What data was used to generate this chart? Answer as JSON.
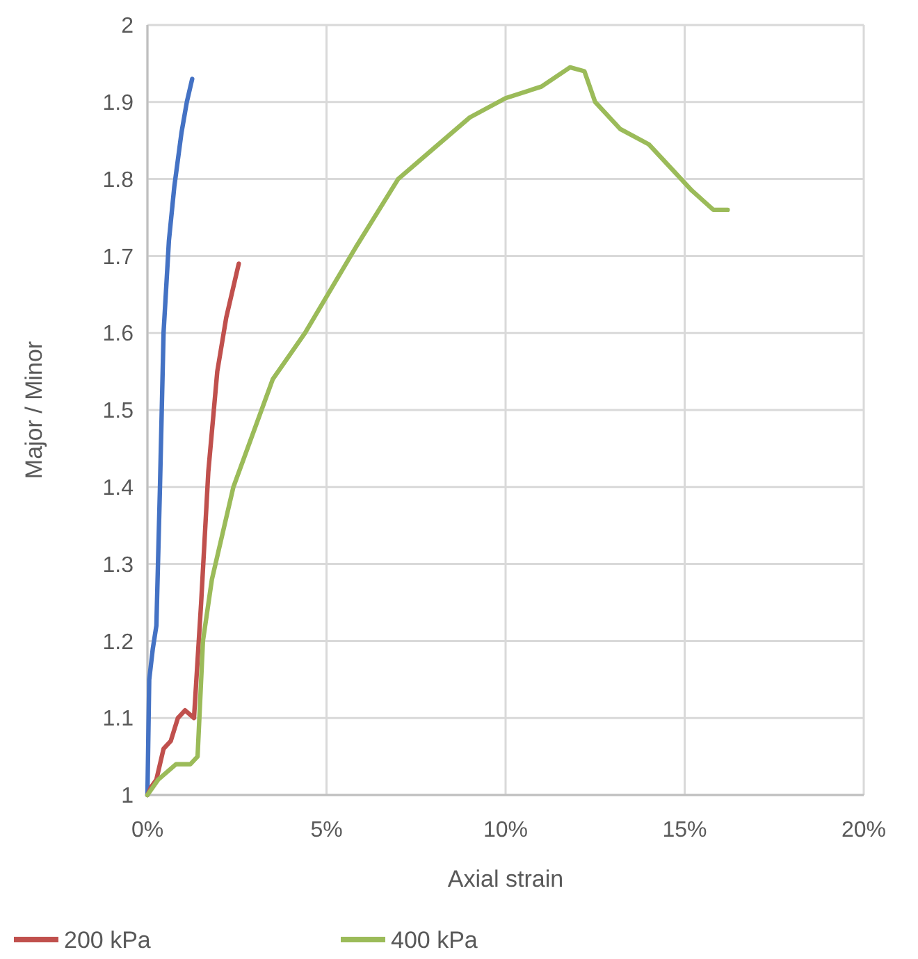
{
  "chart_data": {
    "type": "line",
    "xlabel": "Axial strain",
    "ylabel": "Major / Minor",
    "xlim": [
      0,
      20
    ],
    "xticks": [
      {
        "value": 0,
        "label": "0%"
      },
      {
        "value": 5,
        "label": "5%"
      },
      {
        "value": 10,
        "label": "10%"
      },
      {
        "value": 15,
        "label": "15%"
      },
      {
        "value": 20,
        "label": "20%"
      }
    ],
    "ylim": [
      1,
      2
    ],
    "yticks": [
      1,
      1.1,
      1.2,
      1.3,
      1.4,
      1.5,
      1.6,
      1.7,
      1.8,
      1.9,
      2
    ],
    "grid": true,
    "legend": "bottom",
    "line_style": "solid",
    "marker": "none",
    "series": [
      {
        "color": "#4472c4",
        "x": [
          0,
          0.05,
          0.15,
          0.25,
          0.35,
          0.45,
          0.6,
          0.75,
          0.95,
          1.1,
          1.25
        ],
        "values": [
          1,
          1.15,
          1.19,
          1.22,
          1.4,
          1.6,
          1.72,
          1.79,
          1.86,
          1.9,
          1.93
        ]
      },
      {
        "name": "200 kPa",
        "color": "#c0504d",
        "x": [
          0,
          0.1,
          0.25,
          0.45,
          0.65,
          0.85,
          1.05,
          1.3,
          1.5,
          1.7,
          1.95,
          2.2,
          2.55
        ],
        "values": [
          1,
          1.01,
          1.02,
          1.06,
          1.07,
          1.1,
          1.11,
          1.1,
          1.25,
          1.42,
          1.55,
          1.62,
          1.69
        ]
      },
      {
        "name": "400 kPa",
        "color": "#9bbb59",
        "x": [
          0,
          0.3,
          0.8,
          1.2,
          1.4,
          1.55,
          1.8,
          2.4,
          3.5,
          4.4,
          5.8,
          7,
          8,
          9,
          10,
          11,
          11.8,
          12.2,
          12.5,
          13.2,
          14,
          14.7,
          15.2,
          15.8,
          16.2
        ],
        "values": [
          1,
          1.02,
          1.04,
          1.04,
          1.05,
          1.2,
          1.28,
          1.4,
          1.54,
          1.6,
          1.71,
          1.8,
          1.84,
          1.88,
          1.905,
          1.92,
          1.945,
          1.94,
          1.9,
          1.865,
          1.845,
          1.81,
          1.785,
          1.76,
          1.76
        ]
      }
    ]
  }
}
